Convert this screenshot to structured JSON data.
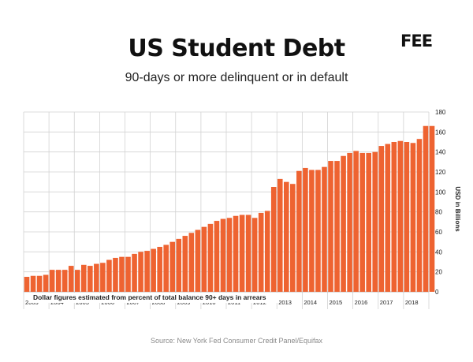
{
  "header": {
    "title": "US Student Debt",
    "subtitle": "90-days or more delinquent or in default",
    "logo": "FEE"
  },
  "footer": {
    "source": "Source: New York Fed Consumer Credit Panel/Equifax"
  },
  "colors": {
    "bar": "#ee6331",
    "grid": "#d2d2d2",
    "text": "#222222"
  },
  "chart_data": {
    "type": "bar",
    "ylabel": "USD in Billions",
    "ylim": [
      0,
      180
    ],
    "yticks": [
      0,
      20,
      40,
      60,
      80,
      100,
      120,
      140,
      160,
      180
    ],
    "y_axis_side": "right",
    "grid": true,
    "annotation": "Dollar figures estimated from percent of total balance 90+ days in arrears",
    "year_labels": [
      "2003",
      "2004",
      "2005",
      "2006",
      "2007",
      "2008",
      "2009",
      "2010",
      "2011",
      "2012",
      "2013",
      "2014",
      "2015",
      "2016",
      "2017",
      "2018"
    ],
    "first_year": 2003,
    "quarters_per_year": 4,
    "values": [
      15,
      16,
      16,
      17,
      22,
      22,
      22,
      26,
      22,
      27,
      26,
      28,
      29,
      32,
      34,
      35,
      35,
      38,
      40,
      41,
      43,
      45,
      47,
      50,
      53,
      56,
      59,
      62,
      65,
      68,
      71,
      73,
      74,
      76,
      77,
      77,
      74,
      79,
      81,
      105,
      113,
      110,
      108,
      121,
      124,
      122,
      122,
      125,
      131,
      131,
      136,
      139,
      141,
      139,
      139,
      140,
      146,
      148,
      150,
      151,
      150,
      149,
      153,
      166,
      166
    ]
  }
}
